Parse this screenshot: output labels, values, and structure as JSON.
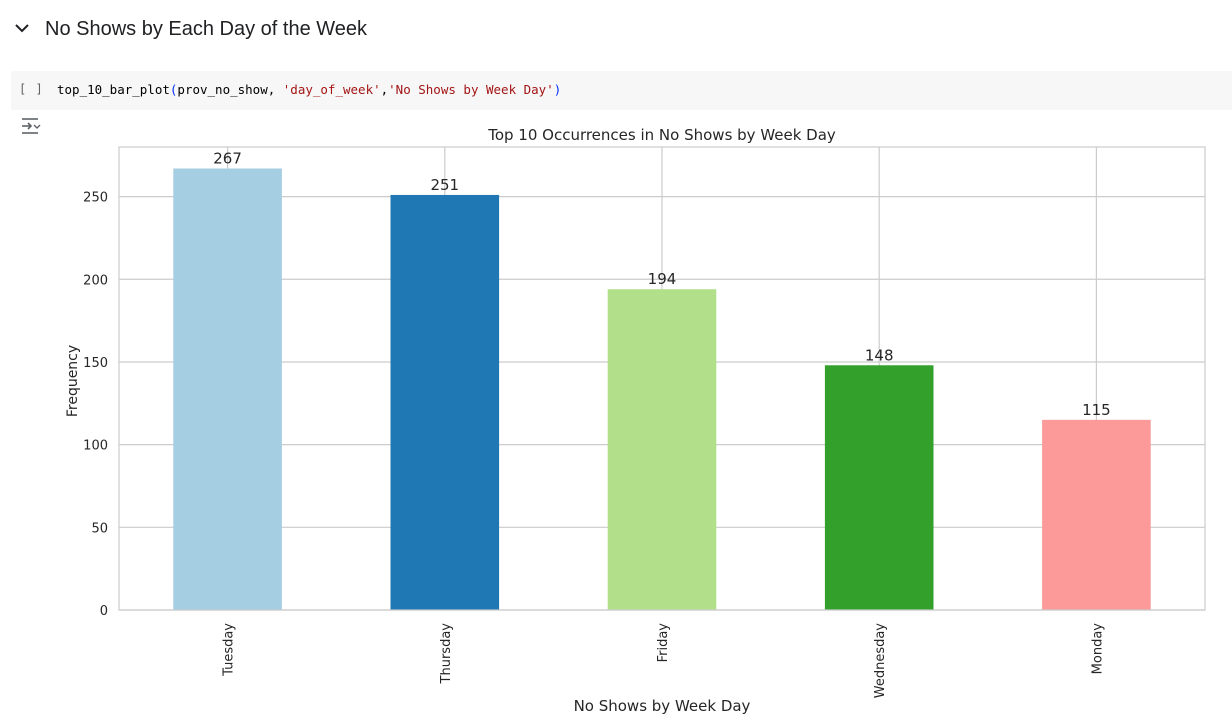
{
  "section": {
    "title": "No Shows by Each Day of the Week",
    "collapse_icon": "chevron-down-icon"
  },
  "code_cell": {
    "run_label": "[ ]",
    "code": {
      "func": "top_10_bar_plot",
      "open_paren": "(",
      "arg1": "prov_no_show, ",
      "arg2": "'day_of_week'",
      "sep": ",",
      "arg3": "'No Shows by Week Day'",
      "close_paren": ")"
    }
  },
  "output": {
    "toggle_icon": "output-settings-icon"
  },
  "chart_data": {
    "type": "bar",
    "title": "Top 10 Occurrences in No Shows by Week Day",
    "xlabel": "No Shows by Week Day",
    "ylabel": "Frequency",
    "categories": [
      "Tuesday",
      "Thursday",
      "Friday",
      "Wednesday",
      "Monday"
    ],
    "values": [
      267,
      251,
      194,
      148,
      115
    ],
    "value_labels": [
      "267",
      "251",
      "194",
      "148",
      "115"
    ],
    "colors": [
      "#a6cee3",
      "#1f78b4",
      "#b2df8a",
      "#33a02c",
      "#fb9a99"
    ],
    "ylim": [
      0,
      280
    ],
    "yticks": [
      0,
      50,
      100,
      150,
      200,
      250
    ],
    "ytick_labels": [
      "0",
      "50",
      "100",
      "150",
      "200",
      "250"
    ],
    "grid": true,
    "legend": "none"
  }
}
